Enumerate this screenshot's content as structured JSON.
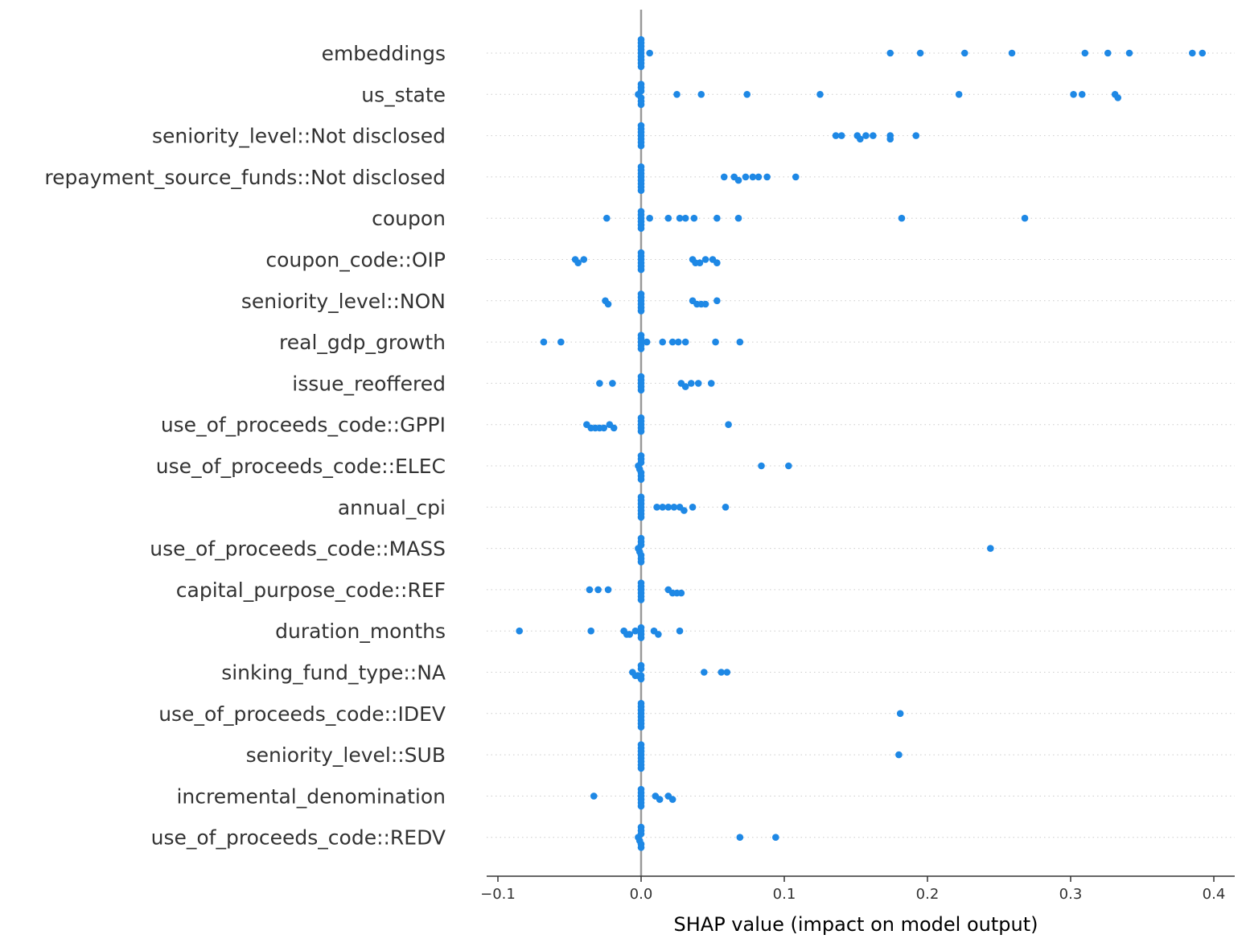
{
  "chart_data": {
    "type": "scatter",
    "subtype": "beeswarm",
    "title": "",
    "xlabel": "SHAP value (impact on model output)",
    "ylabel": "",
    "xlim": [
      -0.11,
      0.415
    ],
    "xticks": [
      -0.1,
      0.0,
      0.1,
      0.2,
      0.3,
      0.4
    ],
    "xtick_labels": [
      "−0.1",
      "0.0",
      "0.1",
      "0.2",
      "0.3",
      "0.4"
    ],
    "grid": false,
    "point_color": "#1E88E5",
    "zero_line_color": "#999999",
    "features": [
      {
        "name": "embeddings",
        "values": [
          0,
          0,
          0,
          0,
          0,
          0,
          0,
          0,
          0,
          0.006,
          0.174,
          0.195,
          0.226,
          0.259,
          0.31,
          0.326,
          0.341,
          0.385,
          0.392
        ]
      },
      {
        "name": "us_state",
        "values": [
          -0.002,
          0,
          0,
          0,
          0,
          0,
          0,
          0.025,
          0.042,
          0.074,
          0.125,
          0.222,
          0.302,
          0.308,
          0.331,
          0.333
        ]
      },
      {
        "name": "seniority_level::Not disclosed",
        "values": [
          0,
          0,
          0,
          0,
          0,
          0,
          0,
          0.136,
          0.14,
          0.151,
          0.153,
          0.157,
          0.162,
          0.174,
          0.174,
          0.192
        ]
      },
      {
        "name": "repayment_source_funds::Not disclosed",
        "values": [
          0,
          0,
          0,
          0,
          0,
          0,
          0,
          0,
          0.058,
          0.065,
          0.068,
          0.073,
          0.078,
          0.082,
          0.088,
          0.108
        ]
      },
      {
        "name": "coupon",
        "values": [
          -0.024,
          0,
          0,
          0,
          0,
          0,
          0,
          0.006,
          0.019,
          0.027,
          0.031,
          0.037,
          0.053,
          0.068,
          0.182,
          0.268
        ]
      },
      {
        "name": "coupon_code::OIP",
        "values": [
          -0.046,
          -0.044,
          -0.04,
          0,
          0,
          0,
          0,
          0,
          0,
          0.036,
          0.038,
          0.041,
          0.045,
          0.05,
          0.053
        ]
      },
      {
        "name": "seniority_level::NON",
        "values": [
          -0.025,
          -0.023,
          0,
          0,
          0,
          0,
          0,
          0,
          0.036,
          0.039,
          0.042,
          0.045,
          0.053
        ]
      },
      {
        "name": "real_gdp_growth",
        "values": [
          -0.068,
          -0.056,
          0,
          0,
          0,
          0,
          0,
          0.004,
          0.015,
          0.022,
          0.026,
          0.031,
          0.052,
          0.069
        ]
      },
      {
        "name": "issue_reoffered",
        "values": [
          -0.029,
          -0.02,
          0,
          0,
          0,
          0,
          0,
          0.028,
          0.031,
          0.035,
          0.04,
          0.049
        ]
      },
      {
        "name": "use_of_proceeds_code::GPPI",
        "values": [
          -0.038,
          -0.035,
          -0.032,
          -0.029,
          -0.026,
          -0.022,
          -0.019,
          0,
          0,
          0,
          0,
          0,
          0.061
        ]
      },
      {
        "name": "use_of_proceeds_code::ELEC",
        "values": [
          -0.002,
          -0.001,
          0,
          0,
          0,
          0,
          0,
          0,
          0.084,
          0.103
        ]
      },
      {
        "name": "annual_cpi",
        "values": [
          0,
          0,
          0,
          0,
          0,
          0,
          0,
          0.011,
          0.015,
          0.019,
          0.023,
          0.027,
          0.03,
          0.036,
          0.059
        ]
      },
      {
        "name": "use_of_proceeds_code::MASS",
        "values": [
          -0.002,
          -0.001,
          0,
          0,
          0,
          0,
          0,
          0,
          0.244
        ]
      },
      {
        "name": "capital_purpose_code::REF",
        "values": [
          -0.036,
          -0.03,
          -0.023,
          0,
          0,
          0,
          0,
          0,
          0,
          0.019,
          0.022,
          0.025,
          0.028
        ]
      },
      {
        "name": "duration_months",
        "values": [
          -0.085,
          -0.035,
          -0.012,
          -0.01,
          -0.008,
          -0.004,
          0,
          0,
          0,
          0,
          0.009,
          0.012,
          0.027
        ]
      },
      {
        "name": "sinking_fund_type::NA",
        "values": [
          -0.006,
          -0.004,
          -0.002,
          0,
          0,
          0,
          0,
          0.044,
          0.056,
          0.06
        ]
      },
      {
        "name": "use_of_proceeds_code::IDEV",
        "values": [
          0,
          0,
          0,
          0,
          0,
          0,
          0,
          0,
          0.181
        ]
      },
      {
        "name": "seniority_level::SUB",
        "values": [
          0,
          0,
          0,
          0,
          0,
          0,
          0,
          0,
          0.18
        ]
      },
      {
        "name": "incremental_denomination",
        "values": [
          -0.033,
          0,
          0,
          0,
          0,
          0,
          0,
          0.01,
          0.013,
          0.019,
          0.022
        ]
      },
      {
        "name": "use_of_proceeds_code::REDV",
        "values": [
          -0.002,
          -0.001,
          0,
          0,
          0,
          0,
          0,
          0.069,
          0.094
        ]
      }
    ]
  }
}
